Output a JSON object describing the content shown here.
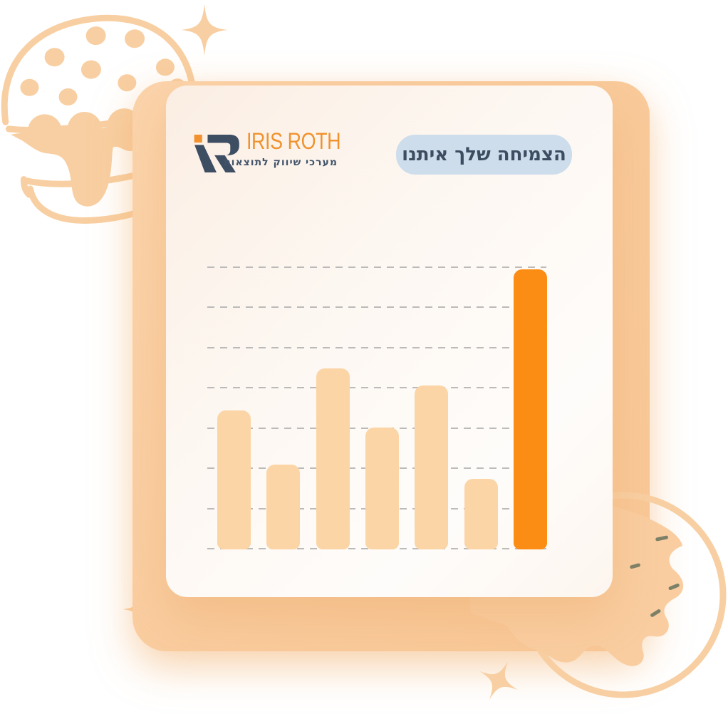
{
  "brand": {
    "name": "IRIS ROTH",
    "tagline": "מערכי שיווק לתוצאות",
    "logo_navy": "#3d4e63",
    "logo_orange": "#f2912d"
  },
  "badge": {
    "label": "הצמיחה שלך איתנו",
    "background": "#cdddeb",
    "text_color": "#3c4d62"
  },
  "chart_data": {
    "type": "bar",
    "title": "",
    "xlabel": "",
    "ylabel": "",
    "categories": [
      "",
      "",
      "",
      "",
      "",
      "",
      ""
    ],
    "values": [
      49,
      30,
      64,
      43,
      58,
      25,
      99
    ],
    "ylim": [
      0,
      100
    ],
    "gridlines": 8,
    "grid_style": "dashed horizontal",
    "tick_labels_visible": false,
    "legend": "none",
    "bar_color": "#fcd5a6",
    "highlight_index": 6,
    "highlight_color": "#fb8d14",
    "gridline_color": "#a6a6a6"
  },
  "decorations": {
    "colors": {
      "peach": "#f8cfa2",
      "panel_peach": "#f9cb9d",
      "sprinkle": "#7d8068"
    },
    "items": [
      {
        "name": "hamburger-illustration",
        "position": "top-left"
      },
      {
        "name": "donut-illustration",
        "position": "bottom-right"
      },
      {
        "name": "sparkle-top",
        "position": "top"
      },
      {
        "name": "sparkle-bottom",
        "position": "bottom-center"
      },
      {
        "name": "sparkle-left",
        "position": "left-edge"
      }
    ]
  }
}
